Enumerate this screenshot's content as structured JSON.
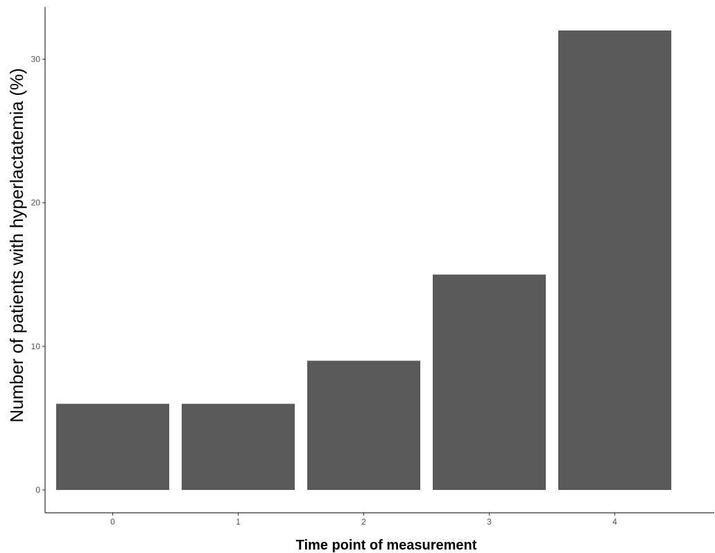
{
  "chart_data": {
    "type": "bar",
    "title": "",
    "xlabel": "Time point of measurement",
    "ylabel": "Number of patients with hyperlactatemia (%)",
    "categories": [
      "0",
      "1",
      "2",
      "3",
      "4"
    ],
    "values": [
      6,
      6,
      9,
      15,
      32
    ],
    "ylim": [
      0,
      33.5
    ],
    "yticks": [
      0,
      10,
      20,
      30
    ],
    "grid": false,
    "legend": "none",
    "bar_color": "#595959",
    "axis_color": "#000000",
    "tick_label_color": "#4d4d4d"
  }
}
